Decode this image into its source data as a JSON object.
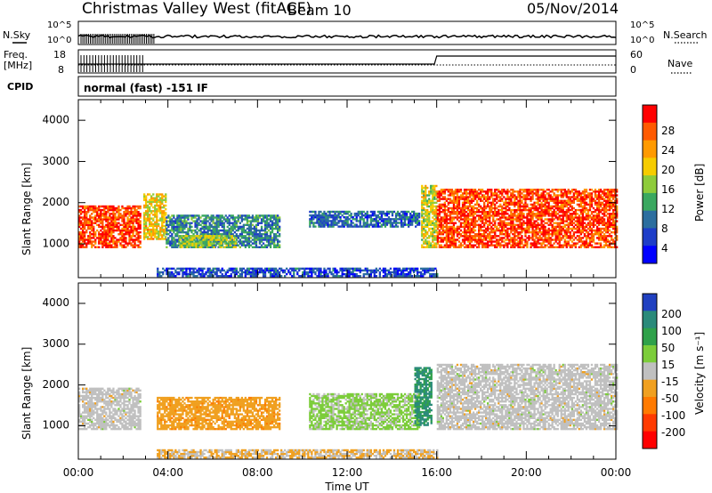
{
  "header": {
    "station": "Christmas Valley West (fitACF)",
    "beam": "Beam 10",
    "date": "05/Nov/2014"
  },
  "strip": {
    "nsky_label": "N.Sky",
    "nsearch_label": "N.Search",
    "noise_ticks": [
      "10^5",
      "10^0"
    ],
    "freq_label_1": "Freq.",
    "freq_label_2": "[MHz]",
    "freq_ticks": [
      "18",
      "8"
    ],
    "nave_label": "Nave",
    "nave_ticks": [
      "60",
      "0"
    ],
    "cpid_label": "CPID",
    "cpid_value": "normal (fast) -151 IF"
  },
  "axes": {
    "ylabel": "Slant Range [km]",
    "yticks": [
      "4000",
      "3000",
      "2000",
      "1000"
    ],
    "xticks": [
      "00:00",
      "04:00",
      "08:00",
      "12:00",
      "16:00",
      "20:00",
      "00:00"
    ],
    "xlabel": "Time UT"
  },
  "power_scale": {
    "label": "Power [dB]",
    "ticks": [
      "28",
      "24",
      "20",
      "16",
      "12",
      "8",
      "4"
    ],
    "colors": [
      "#ff0000",
      "#ff5a00",
      "#ff9a00",
      "#f6cc00",
      "#8ecb3b",
      "#3aa860",
      "#2c6e9f",
      "#1e3dc8",
      "#0000ff"
    ]
  },
  "velocity_scale": {
    "label": "Velocity [m s⁻¹]",
    "ticks": [
      "200",
      "100",
      "50",
      "15",
      "-15",
      "-50",
      "-100",
      "-200"
    ],
    "colors": [
      "#2040c0",
      "#2a8a7a",
      "#2fa14a",
      "#7ccd3a",
      "#c0c0c0",
      "#f0a020",
      "#ff7a00",
      "#ff3a00",
      "#ff0000"
    ]
  },
  "chart_data": [
    {
      "type": "heatmap",
      "title": "Christmas Valley West (fitACF) Beam 10 05/Nov/2014",
      "xlabel": "Time UT",
      "ylabel": "Slant Range [km]",
      "xlim": [
        0,
        24
      ],
      "ylim": [
        180,
        4500
      ],
      "quantity": "Power [dB]",
      "color_range": [
        0,
        32
      ],
      "regions": [
        {
          "t_start": 0.0,
          "t_end": 2.8,
          "r_start": 900,
          "r_end": 1900,
          "value": 28
        },
        {
          "t_start": 2.9,
          "t_end": 3.9,
          "r_start": 1100,
          "r_end": 2200,
          "value": 20
        },
        {
          "t_start": 3.9,
          "t_end": 9.0,
          "r_start": 900,
          "r_end": 1700,
          "value": 10
        },
        {
          "t_start": 4.5,
          "t_end": 7.0,
          "r_start": 900,
          "r_end": 1200,
          "value": 16
        },
        {
          "t_start": 10.3,
          "t_end": 15.2,
          "r_start": 1400,
          "r_end": 1800,
          "value": 8
        },
        {
          "t_start": 15.3,
          "t_end": 16.0,
          "r_start": 900,
          "r_end": 2400,
          "value": 18
        },
        {
          "t_start": 16.0,
          "t_end": 24.0,
          "r_start": 900,
          "r_end": 2300,
          "value": 28
        },
        {
          "t_start": 3.5,
          "t_end": 16.0,
          "r_start": 200,
          "r_end": 400,
          "value": 6
        }
      ]
    },
    {
      "type": "heatmap",
      "title": "Christmas Valley West (fitACF) Beam 10 05/Nov/2014",
      "xlabel": "Time UT",
      "ylabel": "Slant Range [km]",
      "xlim": [
        0,
        24
      ],
      "ylim": [
        180,
        4500
      ],
      "quantity": "Velocity [m s⁻¹]",
      "color_range": [
        -250,
        250
      ],
      "regions": [
        {
          "t_start": 0.0,
          "t_end": 2.8,
          "r_start": 900,
          "r_end": 1900,
          "value": 0
        },
        {
          "t_start": 3.5,
          "t_end": 9.0,
          "r_start": 900,
          "r_end": 1700,
          "value": -60
        },
        {
          "t_start": 10.3,
          "t_end": 15.2,
          "r_start": 900,
          "r_end": 1800,
          "value": 40
        },
        {
          "t_start": 15.0,
          "t_end": 15.8,
          "r_start": 1000,
          "r_end": 2400,
          "value": 150
        },
        {
          "t_start": 16.0,
          "t_end": 24.0,
          "r_start": 900,
          "r_end": 2500,
          "value": 0
        },
        {
          "t_start": 3.5,
          "t_end": 16.0,
          "r_start": 200,
          "r_end": 400,
          "value": -30
        }
      ]
    }
  ]
}
